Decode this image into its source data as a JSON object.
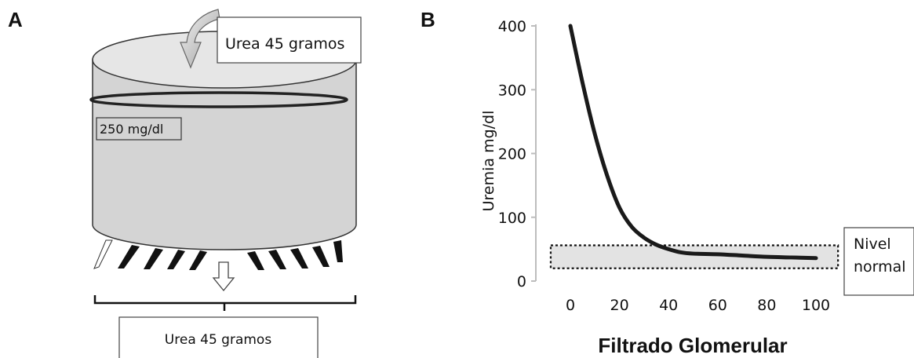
{
  "panel_a": {
    "letter": "A",
    "inflow_label": "Urea 45 gramos",
    "concentration_label": "250 mg/dl",
    "outflow_label": "Urea 45 gramos"
  },
  "panel_b": {
    "letter": "B",
    "normal_box_label_line1": "Nivel",
    "normal_box_label_line2": "normal"
  },
  "chart_data": {
    "type": "line",
    "xlabel": "Filtrado Glomerular",
    "ylabel": "Uremia mg/dl",
    "xlim": [
      -10,
      110
    ],
    "ylim": [
      0,
      400
    ],
    "x_ticks": [
      "0",
      "20",
      "40",
      "60",
      "80",
      "100"
    ],
    "x_tick_values": [
      0,
      20,
      40,
      60,
      80,
      100
    ],
    "y_ticks": [
      "0",
      "100",
      "200",
      "300",
      "400"
    ],
    "y_tick_values": [
      0,
      100,
      200,
      300,
      400
    ],
    "series": [
      {
        "x": [
          0,
          5,
          10,
          15,
          20,
          25,
          30,
          35,
          40,
          45,
          50,
          60,
          70,
          80,
          90,
          100
        ],
        "values": [
          400,
          310,
          230,
          165,
          115,
          85,
          68,
          57,
          50,
          45,
          43,
          42,
          40,
          38,
          37,
          36
        ]
      }
    ],
    "normal_range": [
      20,
      56
    ],
    "grid": false,
    "colors": {
      "line": "#1a1a1a",
      "normal_band": "#e3e3e3",
      "axis": "#bbbbbb"
    }
  }
}
